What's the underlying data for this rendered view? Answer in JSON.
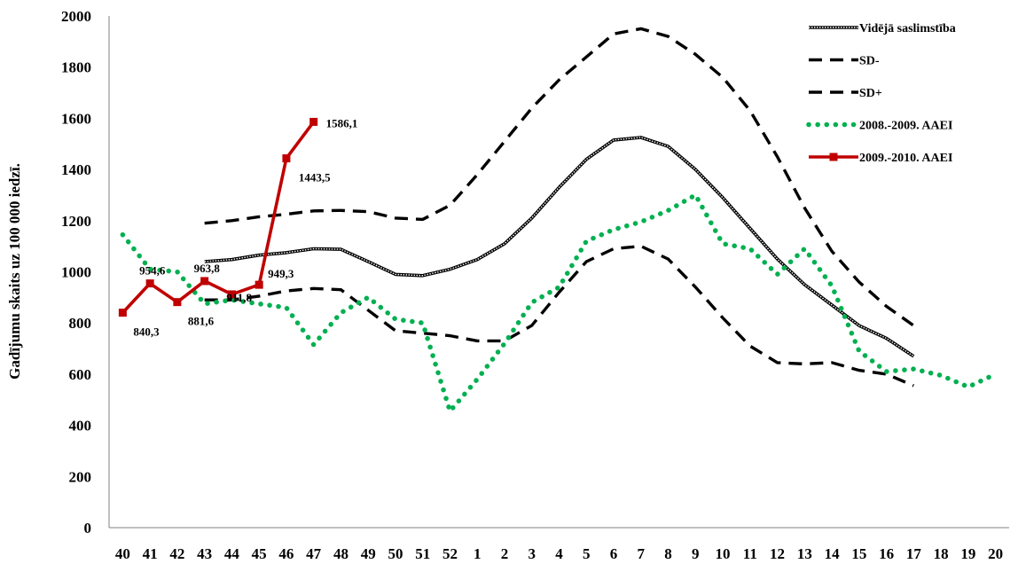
{
  "chart_data": {
    "type": "line",
    "ylabel": "Gadījumu skaits uz 100 000 iedzī.",
    "xlabel": "",
    "ylim": [
      0,
      2000
    ],
    "yticks": [
      0,
      200,
      400,
      600,
      800,
      1000,
      1200,
      1400,
      1600,
      1800,
      2000
    ],
    "categories": [
      "40",
      "41",
      "42",
      "43",
      "44",
      "45",
      "46",
      "47",
      "48",
      "49",
      "50",
      "51",
      "52",
      "1",
      "2",
      "3",
      "4",
      "5",
      "6",
      "7",
      "8",
      "9",
      "10",
      "11",
      "12",
      "13",
      "14",
      "15",
      "16",
      "17",
      "18",
      "19",
      "20"
    ],
    "grid": false,
    "legend_position": "top-right",
    "series": [
      {
        "name": "Vidējā saslimstība",
        "color": "#000000",
        "style": "double",
        "values": [
          null,
          null,
          null,
          1040,
          1048,
          1065,
          1075,
          1090,
          1088,
          1040,
          990,
          985,
          1010,
          1048,
          1110,
          1210,
          1330,
          1440,
          1515,
          1525,
          1490,
          1400,
          1290,
          1170,
          1050,
          950,
          870,
          790,
          740,
          670,
          null,
          null,
          null
        ]
      },
      {
        "name": "SD-",
        "color": "#000000",
        "style": "dashed",
        "values": [
          null,
          null,
          null,
          890,
          890,
          905,
          925,
          935,
          930,
          850,
          770,
          760,
          750,
          730,
          730,
          790,
          920,
          1040,
          1090,
          1100,
          1050,
          940,
          820,
          710,
          645,
          640,
          645,
          615,
          600,
          555,
          null,
          null,
          null
        ]
      },
      {
        "name": "SD+",
        "color": "#000000",
        "style": "dashed",
        "values": [
          null,
          null,
          null,
          1190,
          1200,
          1215,
          1225,
          1238,
          1240,
          1235,
          1210,
          1205,
          1260,
          1380,
          1510,
          1640,
          1750,
          1840,
          1930,
          1950,
          1920,
          1850,
          1760,
          1630,
          1450,
          1250,
          1080,
          960,
          865,
          790,
          null,
          null,
          null
        ]
      },
      {
        "name": "2008.-2009. AAEI",
        "color": "#00b050",
        "style": "dotted",
        "values": [
          1145,
          1010,
          1000,
          875,
          890,
          875,
          860,
          715,
          840,
          900,
          815,
          800,
          455,
          580,
          720,
          880,
          940,
          1120,
          1165,
          1195,
          1240,
          1300,
          1110,
          1090,
          990,
          1090,
          945,
          690,
          610,
          620,
          595,
          550,
          600
        ]
      },
      {
        "name": "2009.-2010. AAEI",
        "color": "#c00000",
        "style": "solid-marker",
        "values": [
          840.3,
          954.6,
          881.6,
          963.8,
          911.8,
          949.3,
          1443.5,
          1586.1,
          null,
          null,
          null,
          null,
          null,
          null,
          null,
          null,
          null,
          null,
          null,
          null,
          null,
          null,
          null,
          null,
          null,
          null,
          null,
          null,
          null,
          null,
          null,
          null,
          null
        ],
        "data_labels": [
          "840,3",
          "954,6",
          "881,6",
          "963,8",
          "911,8",
          "949,3",
          "1443,5",
          "1586,1"
        ]
      }
    ]
  }
}
